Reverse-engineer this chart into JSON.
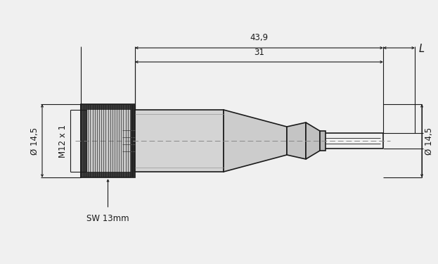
{
  "bg_color": "#f0f0f0",
  "line_color": "#1a1a1a",
  "dim_color": "#1a1a1a",
  "centerline_color": "#888888",
  "dim_439_label": "43,9",
  "dim_31_label": "31",
  "dim_L_label": "L",
  "dim_dia_left_label": "Ø 14,5",
  "dim_m12_label": "M12 x 1",
  "dim_dia_right_label": "Ø 14,5",
  "sw_label": "SW 13mm",
  "figw": 6.23,
  "figh": 3.75
}
